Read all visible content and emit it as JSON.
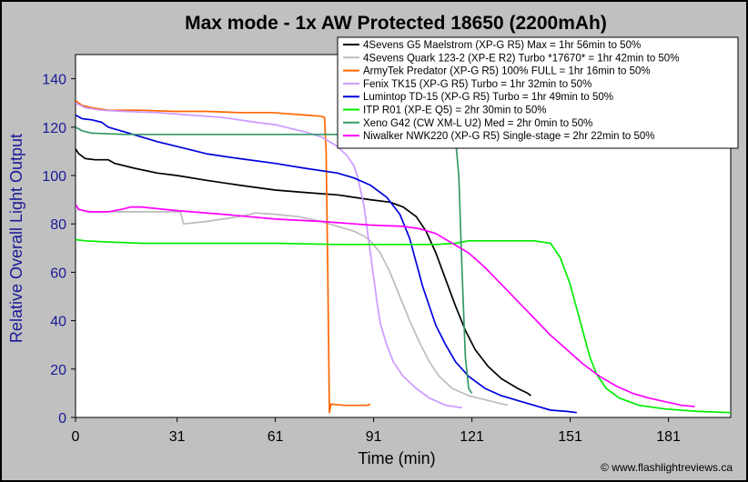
{
  "chart_data": {
    "type": "line",
    "title": "Max mode - 1x AW Protected 18650 (2200mAh)",
    "xlabel": "Time (min)",
    "ylabel": "Relative Overall Light Output",
    "xlim": [
      0,
      200
    ],
    "ylim": [
      0,
      150
    ],
    "xticks": [
      0,
      31,
      61,
      91,
      121,
      151,
      181
    ],
    "yticks": [
      0,
      20,
      40,
      60,
      80,
      100,
      120,
      140
    ],
    "grid": false,
    "legend_position": "top-right",
    "copyright": "© www.flashlightreviews.ca",
    "colors": {
      "background": "#c0c0c0",
      "plot_area": "#ffffff",
      "ytick_text": "#1a1a99"
    },
    "series": [
      {
        "name": "4Sevens G5 Maelstrom (XP-G R5) Max = 1hr 56min to 50%",
        "color": "#000000",
        "points": [
          [
            0,
            111
          ],
          [
            1,
            109
          ],
          [
            3,
            107
          ],
          [
            6,
            106.5
          ],
          [
            10,
            106.5
          ],
          [
            12,
            105
          ],
          [
            18,
            103
          ],
          [
            25,
            101
          ],
          [
            31,
            100
          ],
          [
            40,
            98
          ],
          [
            50,
            96
          ],
          [
            61,
            94
          ],
          [
            70,
            93
          ],
          [
            80,
            92
          ],
          [
            90,
            90
          ],
          [
            96,
            89
          ],
          [
            100,
            87
          ],
          [
            104,
            83
          ],
          [
            107,
            77
          ],
          [
            110,
            68
          ],
          [
            113,
            57
          ],
          [
            116,
            46
          ],
          [
            119,
            36
          ],
          [
            122,
            28
          ],
          [
            126,
            21
          ],
          [
            130,
            16
          ],
          [
            135,
            12
          ],
          [
            138,
            10
          ],
          [
            139,
            9
          ]
        ]
      },
      {
        "name": "4Sevens Quark 123-2 (XP-E R2) Turbo *17670* = 1hr 42min to 50%",
        "color": "#bcbcbc",
        "points": [
          [
            0,
            86
          ],
          [
            5,
            85
          ],
          [
            15,
            85
          ],
          [
            25,
            85
          ],
          [
            32,
            85
          ],
          [
            33,
            80
          ],
          [
            40,
            81
          ],
          [
            50,
            83
          ],
          [
            55,
            84.5
          ],
          [
            61,
            84
          ],
          [
            68,
            83
          ],
          [
            75,
            81
          ],
          [
            80,
            79
          ],
          [
            85,
            77
          ],
          [
            88,
            75
          ],
          [
            90,
            73
          ],
          [
            93,
            68
          ],
          [
            96,
            60
          ],
          [
            99,
            50
          ],
          [
            102,
            40
          ],
          [
            105,
            31
          ],
          [
            108,
            23
          ],
          [
            111,
            17
          ],
          [
            115,
            12
          ],
          [
            120,
            9
          ],
          [
            126,
            7
          ],
          [
            132,
            5
          ]
        ]
      },
      {
        "name": "ArmyTek Predator (XP-G R5) 100% FULL = 1hr 16min to 50%",
        "color": "#ff6600",
        "points": [
          [
            0,
            131
          ],
          [
            2,
            129
          ],
          [
            5,
            128
          ],
          [
            10,
            127
          ],
          [
            20,
            127
          ],
          [
            30,
            126.5
          ],
          [
            40,
            126.5
          ],
          [
            50,
            126
          ],
          [
            60,
            126
          ],
          [
            70,
            125
          ],
          [
            75,
            124.5
          ],
          [
            76,
            124
          ],
          [
            76.5,
            110
          ],
          [
            77,
            60
          ],
          [
            77.5,
            2
          ],
          [
            78,
            5.5
          ],
          [
            82,
            5
          ],
          [
            86,
            5
          ],
          [
            89,
            5
          ],
          [
            90,
            5.5
          ]
        ]
      },
      {
        "name": "Fenix TK15 (XP-G R5) Turbo = 1hr 32min to 50%",
        "color": "#cc99ff",
        "points": [
          [
            0,
            130
          ],
          [
            3,
            128
          ],
          [
            8,
            127
          ],
          [
            15,
            126.5
          ],
          [
            25,
            126
          ],
          [
            35,
            125
          ],
          [
            45,
            124
          ],
          [
            55,
            122
          ],
          [
            61,
            121
          ],
          [
            70,
            118
          ],
          [
            75,
            116
          ],
          [
            80,
            112
          ],
          [
            83,
            108
          ],
          [
            85,
            104
          ],
          [
            86,
            100
          ],
          [
            88,
            88
          ],
          [
            89,
            78
          ],
          [
            90,
            68
          ],
          [
            91,
            58
          ],
          [
            92,
            48
          ],
          [
            93,
            39
          ],
          [
            95,
            30
          ],
          [
            97,
            23
          ],
          [
            100,
            17
          ],
          [
            104,
            12
          ],
          [
            108,
            8
          ],
          [
            113,
            5
          ],
          [
            118,
            4
          ]
        ]
      },
      {
        "name": "Lumintop TD-15 (XP-G R5) Turbo = 1hr 49min to 50%",
        "color": "#0000dd",
        "points": [
          [
            0,
            125
          ],
          [
            2,
            123.5
          ],
          [
            5,
            123
          ],
          [
            8,
            122
          ],
          [
            10,
            120
          ],
          [
            15,
            118
          ],
          [
            20,
            116
          ],
          [
            25,
            114
          ],
          [
            31,
            112
          ],
          [
            40,
            109
          ],
          [
            50,
            107
          ],
          [
            61,
            105
          ],
          [
            70,
            103
          ],
          [
            80,
            101
          ],
          [
            85,
            99
          ],
          [
            90,
            96
          ],
          [
            95,
            91
          ],
          [
            99,
            84
          ],
          [
            102,
            74
          ],
          [
            104,
            64
          ],
          [
            106,
            54
          ],
          [
            108,
            46
          ],
          [
            110,
            38
          ],
          [
            113,
            30
          ],
          [
            116,
            23
          ],
          [
            120,
            17
          ],
          [
            125,
            12
          ],
          [
            130,
            9
          ],
          [
            135,
            7
          ],
          [
            140,
            5
          ],
          [
            145,
            3
          ],
          [
            150,
            2.5
          ],
          [
            153,
            2
          ]
        ]
      },
      {
        "name": "ITP R01 (XP-E Q5) = 2hr 30min to 50%",
        "color": "#00ee00",
        "points": [
          [
            0,
            73.5
          ],
          [
            3,
            73
          ],
          [
            10,
            72.5
          ],
          [
            20,
            72
          ],
          [
            31,
            72
          ],
          [
            50,
            72
          ],
          [
            61,
            72
          ],
          [
            80,
            71.5
          ],
          [
            100,
            71.5
          ],
          [
            110,
            71.5
          ],
          [
            116,
            72
          ],
          [
            120,
            73
          ],
          [
            140,
            73
          ],
          [
            145,
            72
          ],
          [
            148,
            66
          ],
          [
            151,
            55
          ],
          [
            153,
            45
          ],
          [
            155,
            35
          ],
          [
            157,
            25
          ],
          [
            159,
            18
          ],
          [
            162,
            12
          ],
          [
            166,
            8
          ],
          [
            172,
            5
          ],
          [
            180,
            3.5
          ],
          [
            190,
            2.5
          ],
          [
            200,
            2
          ]
        ]
      },
      {
        "name": "Xeno G42 (CW XM-L U2) Med = 2hr 0min to 50%",
        "color": "#339966",
        "points": [
          [
            0,
            120
          ],
          [
            2,
            118.5
          ],
          [
            5,
            117.5
          ],
          [
            15,
            117
          ],
          [
            31,
            117
          ],
          [
            61,
            117
          ],
          [
            90,
            117
          ],
          [
            110,
            117
          ],
          [
            115,
            116.5
          ],
          [
            116,
            115
          ],
          [
            117,
            100
          ],
          [
            118,
            60
          ],
          [
            119,
            25
          ],
          [
            120,
            12
          ],
          [
            121,
            10
          ]
        ]
      },
      {
        "name": "Niwalker NWK220 (XP-G R5) Single-stage = 2hr 22min to 50%",
        "color": "#ff00ff",
        "points": [
          [
            0,
            88
          ],
          [
            1,
            86
          ],
          [
            4,
            85
          ],
          [
            10,
            85
          ],
          [
            14,
            86
          ],
          [
            17,
            87
          ],
          [
            20,
            87
          ],
          [
            31,
            85.5
          ],
          [
            45,
            84
          ],
          [
            61,
            82
          ],
          [
            75,
            81
          ],
          [
            90,
            79.5
          ],
          [
            100,
            79
          ],
          [
            105,
            78
          ],
          [
            110,
            76
          ],
          [
            115,
            72
          ],
          [
            120,
            68
          ],
          [
            125,
            62
          ],
          [
            130,
            55
          ],
          [
            135,
            48
          ],
          [
            140,
            41
          ],
          [
            145,
            34
          ],
          [
            150,
            28
          ],
          [
            155,
            22
          ],
          [
            160,
            17
          ],
          [
            165,
            13
          ],
          [
            170,
            10
          ],
          [
            175,
            8
          ],
          [
            180,
            6.5
          ],
          [
            185,
            5
          ],
          [
            189,
            4.5
          ]
        ]
      }
    ]
  }
}
